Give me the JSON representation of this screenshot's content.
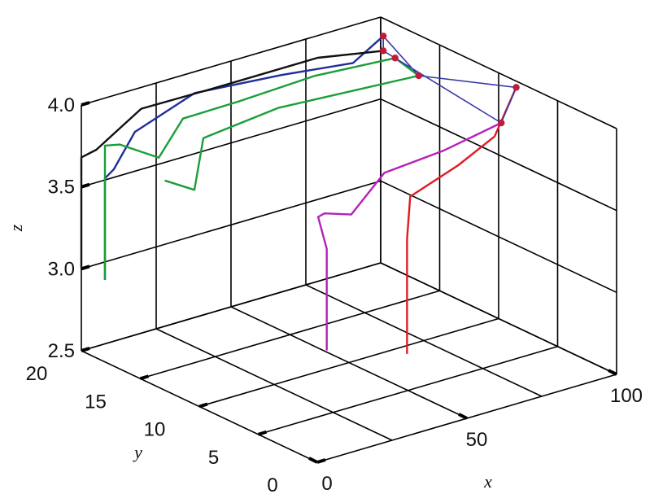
{
  "chart_data": {
    "type": "line",
    "view": "3d",
    "title": "",
    "xlabel": "x",
    "ylabel": "y",
    "zlabel": "z",
    "xlim": [
      0,
      100
    ],
    "ylim": [
      0,
      20
    ],
    "zlim": [
      2.5,
      4.0
    ],
    "x_ticks": [
      "0",
      "50",
      "100"
    ],
    "y_ticks": [
      "0",
      "5",
      "10",
      "15",
      "20"
    ],
    "z_ticks": [
      "2.5",
      "3.0",
      "3.5",
      "4.0"
    ],
    "grid": true,
    "legend": "none",
    "series": [
      {
        "color": "#1f2f9a",
        "points": [
          [
            0,
            18,
            3.0
          ],
          [
            0,
            18,
            3.62
          ],
          [
            3,
            18,
            3.66
          ],
          [
            10,
            18,
            3.85
          ],
          [
            30,
            18,
            3.98
          ],
          [
            55,
            17,
            3.99
          ],
          [
            75,
            16,
            3.99
          ],
          [
            93,
            18,
            3.99
          ]
        ]
      },
      {
        "color": "#111111",
        "points": [
          [
            0,
            20,
            3.0
          ],
          [
            0,
            20,
            3.68
          ],
          [
            5,
            20,
            3.7
          ],
          [
            20,
            20,
            3.87
          ],
          [
            40,
            19,
            3.92
          ],
          [
            75,
            19,
            3.92
          ],
          [
            93,
            18,
            3.9
          ]
        ]
      },
      {
        "color": "#1a9e3a",
        "points": [
          [
            0,
            18,
            3.0
          ],
          [
            0,
            18,
            3.6
          ],
          [
            0,
            18,
            3.82
          ],
          [
            5,
            18,
            3.8
          ],
          [
            18,
            18,
            3.65
          ],
          [
            30,
            19,
            3.79
          ],
          [
            45,
            18,
            3.85
          ],
          [
            70,
            18,
            3.87
          ],
          [
            93,
            17,
            3.89
          ],
          [
            93,
            15,
            3.85
          ],
          [
            50,
            16,
            3.85
          ],
          [
            25,
            16,
            3.8
          ],
          [
            22,
            16,
            3.5
          ],
          [
            20,
            18,
            3.5
          ]
        ]
      },
      {
        "color": "#b522b8",
        "points": [
          [
            15,
            3,
            3.0
          ],
          [
            15,
            3,
            3.62
          ],
          [
            20,
            5,
            3.72
          ],
          [
            30,
            7,
            3.62
          ],
          [
            35,
            6,
            3.62
          ],
          [
            50,
            7,
            3.76
          ],
          [
            70,
            7,
            3.79
          ],
          [
            93,
            8,
            3.8
          ]
        ]
      },
      {
        "color": "#e01b24",
        "points": [
          [
            30,
            0,
            3.0
          ],
          [
            30,
            0,
            3.7
          ],
          [
            35,
            1,
            3.9
          ],
          [
            55,
            2,
            3.95
          ],
          [
            75,
            4,
            3.95
          ],
          [
            98,
            8,
            3.99
          ]
        ]
      }
    ],
    "endpoint_color": "#c21a3a",
    "endpoint_polygon_color": "#3a3aa8",
    "endpoints": [
      [
        93,
        18,
        3.99
      ],
      [
        93,
        18,
        3.9
      ],
      [
        93,
        17,
        3.89
      ],
      [
        93,
        8,
        3.8
      ],
      [
        98,
        8,
        3.99
      ],
      [
        93,
        15,
        3.85
      ]
    ]
  }
}
